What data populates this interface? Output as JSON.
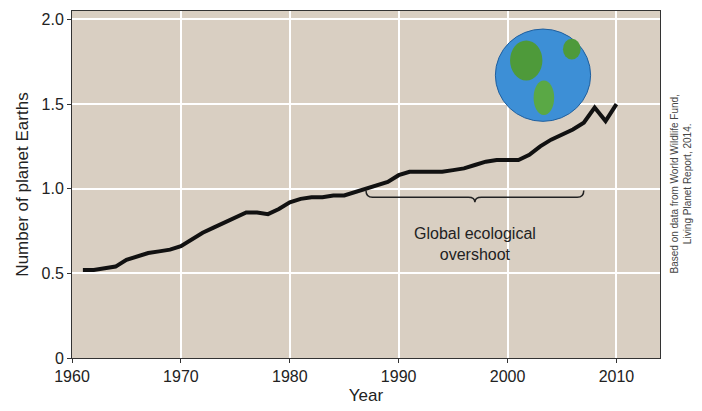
{
  "chart_data": {
    "type": "line",
    "x_label": "Year",
    "y_label": "Number of planet Earths",
    "x": [
      1961,
      1962,
      1963,
      1964,
      1965,
      1966,
      1967,
      1968,
      1969,
      1970,
      1971,
      1972,
      1973,
      1974,
      1975,
      1976,
      1977,
      1978,
      1979,
      1980,
      1981,
      1982,
      1983,
      1984,
      1985,
      1986,
      1987,
      1988,
      1989,
      1990,
      1991,
      1992,
      1993,
      1994,
      1995,
      1996,
      1997,
      1998,
      1999,
      2000,
      2001,
      2002,
      2003,
      2004,
      2005,
      2006,
      2007,
      2008,
      2009,
      2010
    ],
    "values": [
      0.52,
      0.52,
      0.53,
      0.54,
      0.58,
      0.6,
      0.62,
      0.63,
      0.64,
      0.66,
      0.7,
      0.74,
      0.77,
      0.8,
      0.83,
      0.86,
      0.86,
      0.85,
      0.88,
      0.92,
      0.94,
      0.95,
      0.95,
      0.96,
      0.96,
      0.98,
      1.0,
      1.02,
      1.04,
      1.08,
      1.1,
      1.1,
      1.1,
      1.1,
      1.11,
      1.12,
      1.14,
      1.16,
      1.17,
      1.17,
      1.17,
      1.2,
      1.25,
      1.29,
      1.32,
      1.35,
      1.39,
      1.48,
      1.4,
      1.5
    ],
    "color": "#111111",
    "xlim": [
      1960,
      2014
    ],
    "xticks": [
      1960,
      1970,
      1980,
      1990,
      2000,
      2010
    ],
    "ylim": [
      0,
      2.05
    ],
    "yticks": [
      0,
      0.5,
      {
        "value": 1,
        "label": "1.0"
      },
      1.5,
      {
        "value": 2,
        "label": "2.0"
      }
    ],
    "grid": true,
    "annotations": [
      {
        "text": "Global ecological overshoot",
        "x": 1997,
        "y": 0.8,
        "bracket": {
          "x": [
            1987,
            2007
          ],
          "y": 0.95
        }
      }
    ],
    "source": [
      "Based on data from World Wildlife Fund,",
      "Living Planet Report, 2014."
    ]
  }
}
